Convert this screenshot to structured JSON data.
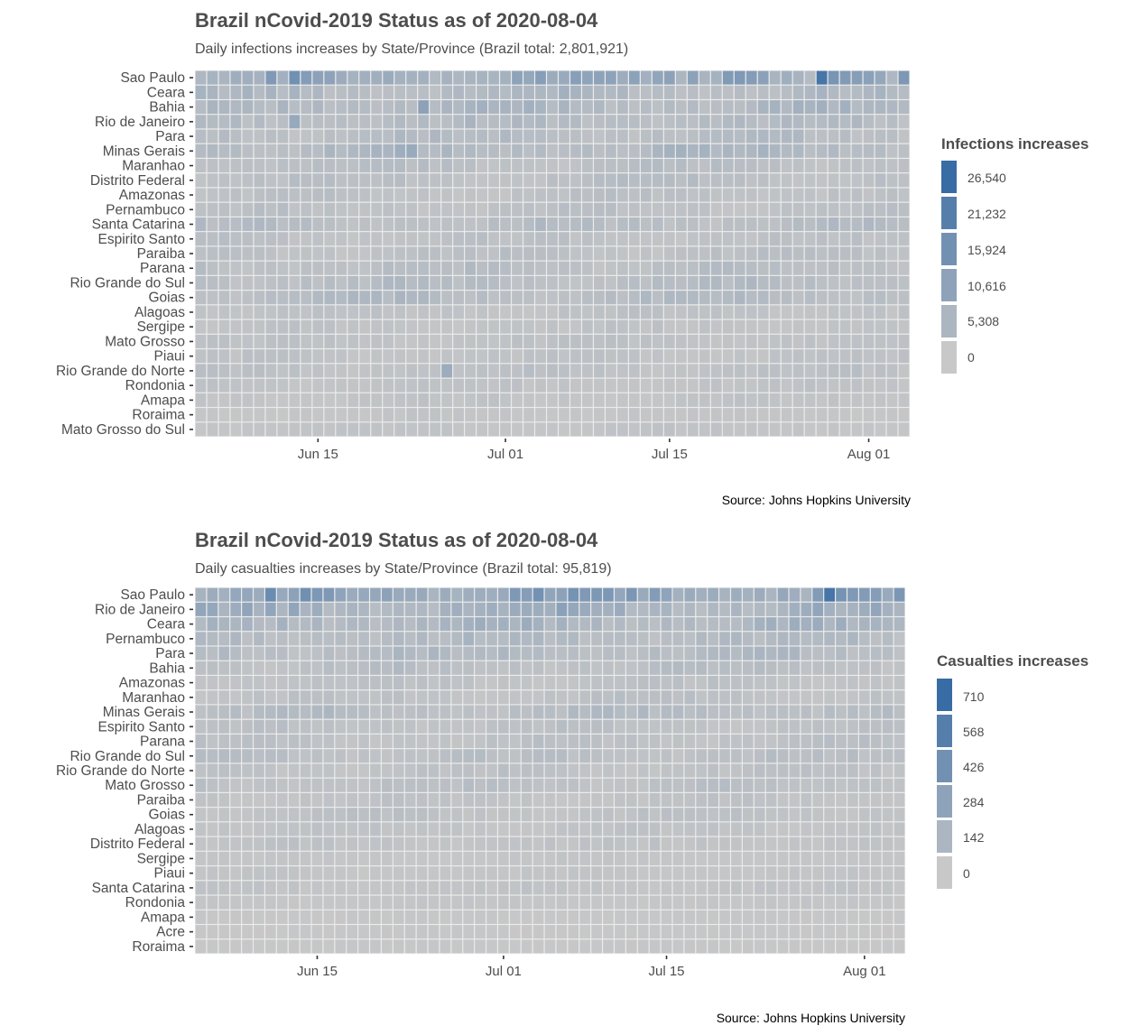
{
  "chart_data": [
    {
      "type": "heatmap",
      "title": "Brazil nCovid-2019 Status as of 2020-08-04",
      "subtitle": "Daily infections increases by State/Province (Brazil total: 2,801,921)",
      "caption": "Source: Johns Hopkins University",
      "legend_title": "Infections increases",
      "legend_labels": [
        "26,540",
        "21,232",
        "15,924",
        "10,616",
        "5,308",
        "0"
      ],
      "legend_values": [
        26540,
        21232,
        15924,
        10616,
        5308,
        0
      ],
      "x_ticks": [
        {
          "label": "Jun 15",
          "day": 15
        },
        {
          "label": "Jul 01",
          "day": 31
        },
        {
          "label": "Jul 15",
          "day": 45
        },
        {
          "label": "Aug 01",
          "day": 62
        }
      ],
      "x_range": [
        "2020-06-05",
        "2020-08-04"
      ],
      "colors": {
        "low": "#c8c8c8",
        "high": "#386ca4"
      },
      "max_value": 30000,
      "states": [
        "Sao Paulo",
        "Ceara",
        "Bahia",
        "Rio de Janeiro",
        "Para",
        "Minas Gerais",
        "Maranhao",
        "Distrito Federal",
        "Amazonas",
        "Pernambuco",
        "Santa Catarina",
        "Espirito Santo",
        "Paraiba",
        "Parana",
        "Rio Grande do Sul",
        "Goias",
        "Alagoas",
        "Sergipe",
        "Mato Grosso",
        "Piaui",
        "Rio Grande do Norte",
        "Rondonia",
        "Amapa",
        "Roraima",
        "Mato Grosso do Sul"
      ],
      "base_values": [
        7000,
        3200,
        3500,
        2600,
        2400,
        3500,
        1800,
        1800,
        1300,
        1400,
        2200,
        1300,
        1500,
        1900,
        2200,
        2400,
        1100,
        900,
        1100,
        1000,
        1300,
        900,
        800,
        500,
        800
      ],
      "spikes": [
        {
          "state": "Sao Paulo",
          "day": 13,
          "value": 16500
        },
        {
          "state": "Sao Paulo",
          "day": 45,
          "value": 10500
        },
        {
          "state": "Sao Paulo",
          "day": 47,
          "value": 10500
        },
        {
          "state": "Sao Paulo",
          "day": 50,
          "value": 13000
        },
        {
          "state": "Sao Paulo",
          "day": 51,
          "value": 13500
        },
        {
          "state": "Sao Paulo",
          "day": 52,
          "value": 12500
        },
        {
          "state": "Sao Paulo",
          "day": 53,
          "value": 11000
        },
        {
          "state": "Sao Paulo",
          "day": 54,
          "value": 5000
        },
        {
          "state": "Sao Paulo",
          "day": 57,
          "value": 3000
        },
        {
          "state": "Sao Paulo",
          "day": 58,
          "value": 26540
        },
        {
          "state": "Sao Paulo",
          "day": 59,
          "value": 15000
        },
        {
          "state": "Sao Paulo",
          "day": 60,
          "value": 13000
        },
        {
          "state": "Sao Paulo",
          "day": 61,
          "value": 12000
        },
        {
          "state": "Sao Paulo",
          "day": 62,
          "value": 11000
        },
        {
          "state": "Sao Paulo",
          "day": 64,
          "value": 4000
        },
        {
          "state": "Sao Paulo",
          "day": 65,
          "value": 14000
        },
        {
          "state": "Bahia",
          "day": 24,
          "value": 10500
        },
        {
          "state": "Minas Gerais",
          "day": 23,
          "value": 8000
        },
        {
          "state": "Rio de Janeiro",
          "day": 13,
          "value": 8500
        },
        {
          "state": "Rio Grande do Norte",
          "day": 26,
          "value": 7500
        }
      ]
    },
    {
      "type": "heatmap",
      "title": "Brazil nCovid-2019 Status as of 2020-08-04",
      "subtitle": "Daily casualties increases by State/Province (Brazil total: 95,819)",
      "caption": "Source: Johns Hopkins University",
      "legend_title": "Casualties increases",
      "legend_labels": [
        "710",
        "568",
        "426",
        "284",
        "142",
        "0"
      ],
      "legend_values": [
        710,
        568,
        426,
        284,
        142,
        0
      ],
      "x_ticks": [
        {
          "label": "Jun 15",
          "day": 15
        },
        {
          "label": "Jul 01",
          "day": 31
        },
        {
          "label": "Jul 15",
          "day": 45
        },
        {
          "label": "Aug 01",
          "day": 62
        }
      ],
      "x_range": [
        "2020-06-05",
        "2020-08-04"
      ],
      "colors": {
        "low": "#c8c8c8",
        "high": "#386ca4"
      },
      "max_value": 800,
      "states": [
        "Sao Paulo",
        "Rio de Janeiro",
        "Ceara",
        "Pernambuco",
        "Para",
        "Bahia",
        "Amazonas",
        "Maranhao",
        "Minas Gerais",
        "Espirito Santo",
        "Parana",
        "Rio Grande do Sul",
        "Rio Grande do Norte",
        "Mato Grosso",
        "Paraiba",
        "Goias",
        "Alagoas",
        "Distrito Federal",
        "Sergipe",
        "Piaui",
        "Santa Catarina",
        "Rondonia",
        "Amapa",
        "Acre",
        "Roraima"
      ],
      "base_values": [
        250,
        150,
        110,
        75,
        75,
        50,
        30,
        35,
        60,
        35,
        35,
        45,
        30,
        40,
        25,
        30,
        25,
        25,
        12,
        15,
        20,
        12,
        6,
        4,
        6
      ],
      "spikes": [
        {
          "state": "Sao Paulo",
          "day": 59,
          "value": 710
        },
        {
          "state": "Sao Paulo",
          "day": 60,
          "value": 420
        },
        {
          "state": "Sao Paulo",
          "day": 61,
          "value": 360
        },
        {
          "state": "Sao Paulo",
          "day": 62,
          "value": 340
        },
        {
          "state": "Sao Paulo",
          "day": 65,
          "value": 380
        }
      ]
    }
  ]
}
